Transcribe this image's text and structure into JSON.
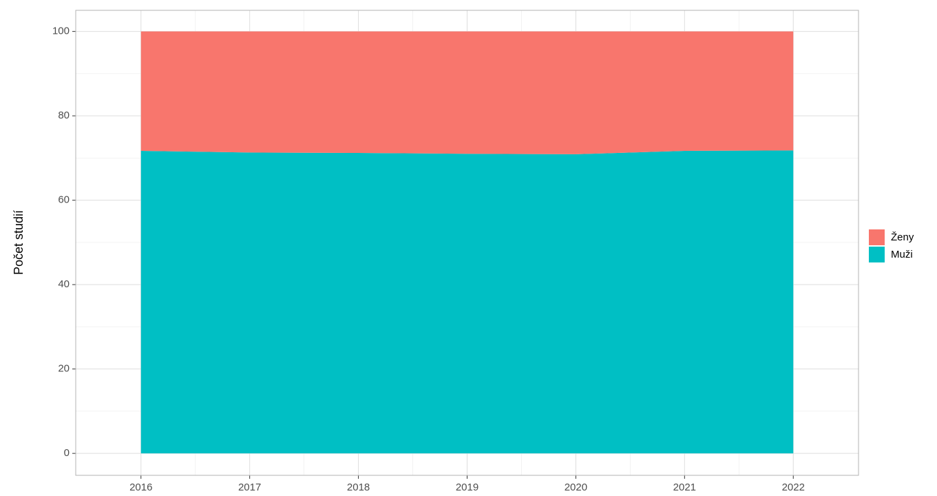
{
  "chart_data": {
    "type": "area",
    "stacked": true,
    "y_label": "Počet studií",
    "x": [
      2016,
      2017,
      2018,
      2019,
      2020,
      2021,
      2022
    ],
    "series": [
      {
        "name": "Muži",
        "color": "#00BFC4",
        "values": [
          71.7,
          71.3,
          71.2,
          71.0,
          70.9,
          71.7,
          71.8
        ]
      },
      {
        "name": "Ženy",
        "color": "#F8766D",
        "values": [
          28.3,
          28.7,
          28.8,
          29.0,
          29.1,
          28.3,
          28.2
        ]
      }
    ],
    "legend_order": [
      1,
      0
    ],
    "xlim": [
      2015.4,
      2022.6
    ],
    "xticks": [
      2016,
      2017,
      2018,
      2019,
      2020,
      2021,
      2022
    ],
    "ylim": [
      -5.2,
      105
    ],
    "yticks": [
      0,
      20,
      40,
      60,
      80,
      100
    ],
    "grid": true,
    "legend": "right"
  }
}
